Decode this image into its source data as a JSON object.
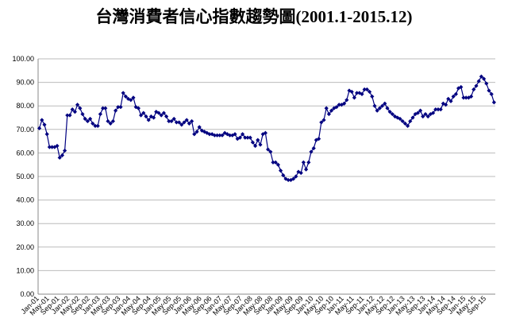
{
  "chart_data": {
    "type": "line",
    "title": "台灣消費者信心指數趨勢圖(2001.1-2015.12)",
    "color": "#000080",
    "grid": true,
    "ylim": [
      0,
      100
    ],
    "yticks": [
      {
        "value": 0,
        "label": "0.00"
      },
      {
        "value": 10,
        "label": "10.00"
      },
      {
        "value": 20,
        "label": "20.00"
      },
      {
        "value": 30,
        "label": "30.00"
      },
      {
        "value": 40,
        "label": "40.00"
      },
      {
        "value": 50,
        "label": "50.00"
      },
      {
        "value": 60,
        "label": "60.00"
      },
      {
        "value": 70,
        "label": "70.00"
      },
      {
        "value": 80,
        "label": "80.00"
      },
      {
        "value": 90,
        "label": "90.00"
      },
      {
        "value": 100,
        "label": "100.00"
      }
    ],
    "categories": [
      "Jan-01",
      null,
      null,
      null,
      "May-01",
      null,
      null,
      null,
      "Sep-01",
      null,
      null,
      null,
      "Jan-02",
      null,
      null,
      null,
      "May-02",
      null,
      null,
      null,
      "Sep-02",
      null,
      null,
      null,
      "Jan-03",
      null,
      null,
      null,
      "May-03",
      null,
      null,
      null,
      "Sep-03",
      null,
      null,
      null,
      "Jan-04",
      null,
      null,
      null,
      "May-04",
      null,
      null,
      null,
      "Sep-04",
      null,
      null,
      null,
      "Jan-05",
      null,
      null,
      null,
      "May-05",
      null,
      null,
      null,
      "Sep-05",
      null,
      null,
      null,
      "Jan-06",
      null,
      null,
      null,
      "May-06",
      null,
      null,
      null,
      "Sep-06",
      null,
      null,
      null,
      "Jan-07",
      null,
      null,
      null,
      "May-07",
      null,
      null,
      null,
      "Sep-07",
      null,
      null,
      null,
      "Jan-08",
      null,
      null,
      null,
      "May-08",
      null,
      null,
      null,
      "Sep-08",
      null,
      null,
      null,
      "Jan-09",
      null,
      null,
      null,
      "May-09",
      null,
      null,
      null,
      "Sep-09",
      null,
      null,
      null,
      "Jan-10",
      null,
      null,
      null,
      "May-10",
      null,
      null,
      null,
      "Sep-10",
      null,
      null,
      null,
      "Jan-11",
      null,
      null,
      null,
      "May-11",
      null,
      null,
      null,
      "Sep-11",
      null,
      null,
      null,
      "Jan-12",
      null,
      null,
      null,
      "May-12",
      null,
      null,
      null,
      "Sep-12",
      null,
      null,
      null,
      "Jan-13",
      null,
      null,
      null,
      "May-13",
      null,
      null,
      null,
      "Sep-13",
      null,
      null,
      null,
      "Jan-14",
      null,
      null,
      null,
      "May-14",
      null,
      null,
      null,
      "Sep-14",
      null,
      null,
      null,
      "Jan-15",
      null,
      null,
      null,
      "May-15",
      null,
      null,
      null,
      "Sep-15",
      null,
      null,
      null
    ],
    "values": [
      70.5,
      74,
      72,
      68,
      62.5,
      62.5,
      62.5,
      63,
      58,
      59,
      61,
      76,
      76,
      78.5,
      77.5,
      80.5,
      79,
      76.5,
      74.5,
      73.5,
      74.5,
      72.5,
      71.5,
      71.5,
      76.5,
      79,
      79,
      73.5,
      72.5,
      73.5,
      78,
      79.5,
      79.5,
      85.5,
      84,
      83,
      82.5,
      83.5,
      79.5,
      79,
      76,
      77,
      75.5,
      74,
      75.5,
      75,
      77.5,
      77,
      76,
      77,
      75.5,
      73.5,
      73.5,
      74.5,
      73,
      73,
      72,
      73,
      74,
      72.5,
      73.5,
      68,
      69,
      71,
      69.5,
      69,
      68.5,
      68,
      68,
      67.5,
      67.5,
      67.5,
      67.5,
      68.5,
      68,
      67.5,
      67.5,
      68,
      66,
      66.5,
      68,
      66.5,
      66.5,
      66.5,
      64.5,
      63,
      65.5,
      63.5,
      68,
      68.5,
      61.5,
      60.5,
      56,
      56,
      55,
      52.5,
      50.5,
      49,
      48.5,
      48.5,
      49,
      50,
      52,
      51.5,
      56,
      53,
      56,
      60.5,
      62,
      65.5,
      66,
      73,
      74,
      79,
      76.5,
      78,
      79,
      79.5,
      80.5,
      80.5,
      81,
      82.5,
      86.5,
      86,
      83.5,
      85.5,
      85.5,
      85,
      87,
      87,
      86,
      84,
      80,
      78,
      79,
      80,
      81,
      79,
      77.5,
      76.5,
      75.5,
      75,
      74.5,
      73.5,
      72.5,
      71.5,
      73.5,
      75,
      76.5,
      77,
      78,
      75.5,
      76.5,
      75.5,
      76.5,
      77,
      78.5,
      78.5,
      78.5,
      81,
      80.5,
      83,
      82,
      84,
      85,
      87.5,
      88,
      83.5,
      83.5,
      83.5,
      84,
      87,
      88.5,
      90.5,
      92.5,
      91.5,
      89.5,
      86.5,
      85,
      81.5
    ]
  }
}
